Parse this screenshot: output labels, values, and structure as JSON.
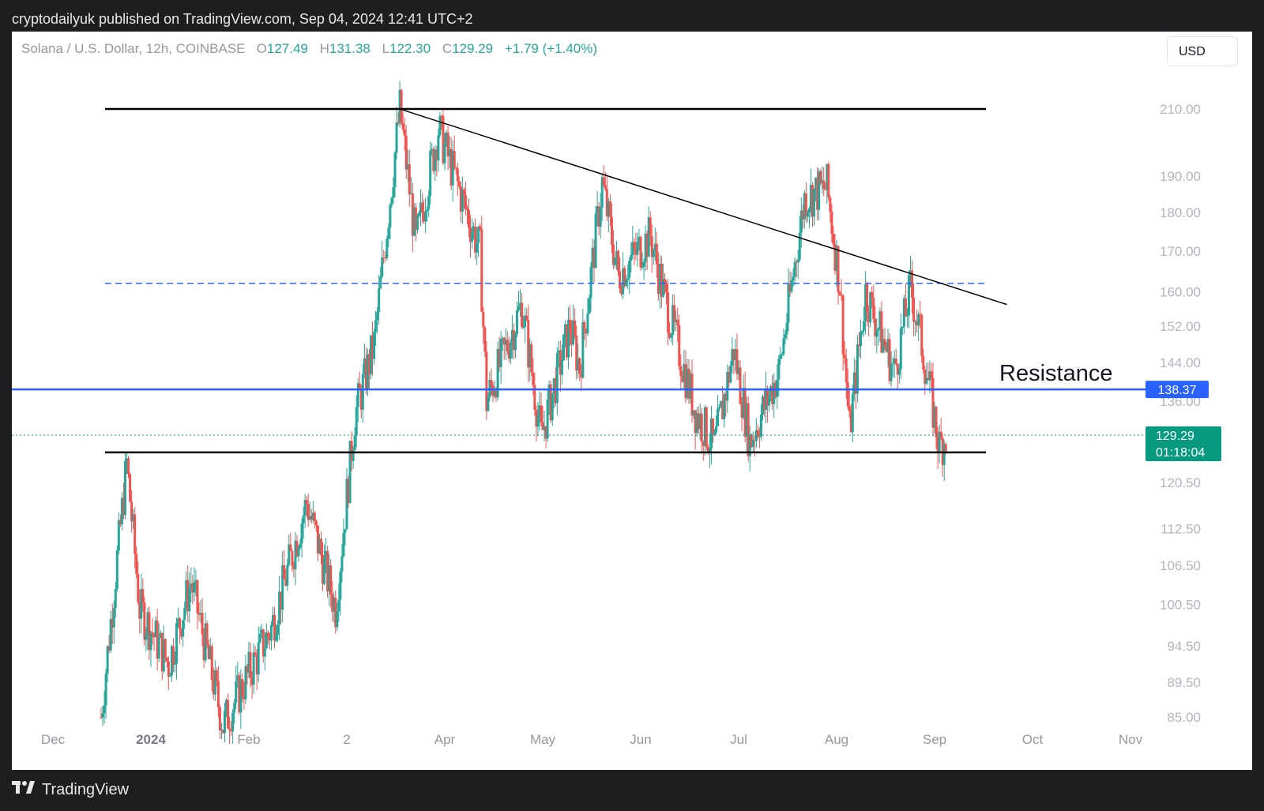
{
  "header": {
    "publish_text": "cryptodailyuk published on TradingView.com, Sep 04, 2024 12:41 UTC+2"
  },
  "legend": {
    "symbol": "Solana / U.S. Dollar, 12h, COINBASE",
    "o_label": "O",
    "o_value": "127.49",
    "h_label": "H",
    "h_value": "131.38",
    "l_label": "L",
    "l_value": "122.30",
    "c_label": "C",
    "c_value": "129.29",
    "change": "+1.79 (+1.40%)"
  },
  "currency_button": "USD",
  "footer": {
    "brand": "TradingView"
  },
  "colors": {
    "up": "#26a69a",
    "down": "#ef5350",
    "resistance": "#2962ff",
    "current": "#089981"
  },
  "chart_data": {
    "type": "candlestick",
    "scale": "log",
    "y_ticks": [
      210,
      190,
      180,
      170,
      160,
      152,
      144,
      136,
      120.5,
      112.5,
      106.5,
      100.5,
      94.5,
      89.5,
      85
    ],
    "y_tick_labels": [
      "210.00",
      "190.00",
      "180.00",
      "170.00",
      "160.00",
      "152.00",
      "144.00",
      "136.00",
      "120.50",
      "112.50",
      "106.50",
      "100.50",
      "94.50",
      "89.50",
      "85.00"
    ],
    "x_tick_labels": [
      {
        "label": "Dec",
        "bold": false
      },
      {
        "label": "2024",
        "bold": true
      },
      {
        "label": "Feb",
        "bold": false
      },
      {
        "label": "2",
        "bold": false
      },
      {
        "label": "Apr",
        "bold": false
      },
      {
        "label": "May",
        "bold": false
      },
      {
        "label": "Jun",
        "bold": false
      },
      {
        "label": "Jul",
        "bold": false
      },
      {
        "label": "Aug",
        "bold": false
      },
      {
        "label": "Sep",
        "bold": false
      },
      {
        "label": "Oct",
        "bold": false
      },
      {
        "label": "Nov",
        "bold": false
      }
    ],
    "price_anchors": [
      [
        "2023-12-16",
        85
      ],
      [
        "2023-12-24",
        124
      ],
      [
        "2023-12-28",
        100
      ],
      [
        "2024-01-06",
        92
      ],
      [
        "2024-01-13",
        104
      ],
      [
        "2024-01-23",
        84
      ],
      [
        "2024-02-07",
        97
      ],
      [
        "2024-02-18",
        117
      ],
      [
        "2024-02-27",
        100
      ],
      [
        "2024-03-04",
        133
      ],
      [
        "2024-03-10",
        148
      ],
      [
        "2024-03-18",
        210
      ],
      [
        "2024-03-23",
        172
      ],
      [
        "2024-03-30",
        204
      ],
      [
        "2024-04-12",
        170
      ],
      [
        "2024-04-14",
        136
      ],
      [
        "2024-04-25",
        157
      ],
      [
        "2024-05-01",
        129
      ],
      [
        "2024-05-10",
        152
      ],
      [
        "2024-05-13",
        143
      ],
      [
        "2024-05-20",
        188
      ],
      [
        "2024-05-25",
        164
      ],
      [
        "2024-06-04",
        174
      ],
      [
        "2024-06-08",
        160
      ],
      [
        "2024-06-18",
        134
      ],
      [
        "2024-06-24",
        127
      ],
      [
        "2024-06-30",
        147
      ],
      [
        "2024-07-05",
        128
      ],
      [
        "2024-07-14",
        142
      ],
      [
        "2024-07-22",
        184
      ],
      [
        "2024-07-29",
        187
      ],
      [
        "2024-08-02",
        162
      ],
      [
        "2024-08-05",
        130
      ],
      [
        "2024-08-10",
        160
      ],
      [
        "2024-08-19",
        142
      ],
      [
        "2024-08-24",
        161
      ],
      [
        "2024-08-27",
        150
      ],
      [
        "2024-09-02",
        127
      ],
      [
        "2024-09-04",
        129.29
      ]
    ],
    "overlays": {
      "top_horizontal_line": 210,
      "bottom_horizontal_line": 126,
      "dashed_line": 162,
      "trendline": [
        [
          "2024-03-18",
          210
        ],
        [
          "2024-09-23",
          157
        ]
      ]
    },
    "resistance_label": "Resistance",
    "resistance_value": "138.37",
    "current_price": "129.29",
    "countdown": "01:18:04"
  }
}
